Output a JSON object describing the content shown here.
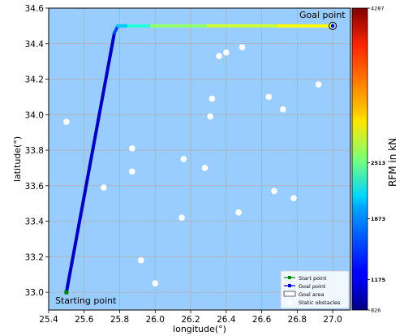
{
  "chart_data": {
    "type": "line",
    "title": "",
    "xlabel": "longitude(°)",
    "ylabel": "latitude(°)",
    "xlim": [
      25.4,
      27.1
    ],
    "ylim": [
      32.9,
      34.6
    ],
    "xticks": [
      25.4,
      25.6,
      25.8,
      26.0,
      26.2,
      26.4,
      26.6,
      26.8,
      27.0
    ],
    "yticks": [
      33.0,
      33.2,
      33.4,
      33.6,
      33.8,
      34.0,
      34.2,
      34.4,
      34.6
    ],
    "xtick_labels": [
      "25.4",
      "25.6",
      "25.8",
      "26.0",
      "26.2",
      "26.4",
      "26.6",
      "26.8",
      "27.0"
    ],
    "ytick_labels": [
      "33.0",
      "33.2",
      "33.4",
      "33.6",
      "33.8",
      "34.0",
      "34.2",
      "34.4",
      "34.6"
    ],
    "grid": true,
    "background_color": "#99ccff",
    "annotations": [
      {
        "text": "Goal point",
        "x": 27.0,
        "y": 34.5,
        "position": "above-left"
      },
      {
        "text": "Starting point",
        "x": 25.5,
        "y": 33.0,
        "position": "below-right"
      }
    ],
    "start_point": {
      "x": 25.5,
      "y": 33.0,
      "color": "#008000"
    },
    "goal_point": {
      "x": 27.0,
      "y": 34.5
    },
    "path": {
      "colorbar_range": [
        826,
        4287
      ],
      "segments": [
        {
          "x": [
            25.5,
            25.77
          ],
          "y": [
            33.0,
            34.46
          ],
          "rfm": 1050
        },
        {
          "x": [
            25.77,
            25.79
          ],
          "y": [
            34.46,
            34.5
          ],
          "rfm": 1500
        },
        {
          "x": [
            25.79,
            25.85
          ],
          "y": [
            34.5,
            34.5
          ],
          "rfm": 1950
        },
        {
          "x": [
            25.85,
            25.98
          ],
          "y": [
            34.5,
            34.5
          ],
          "rfm": 2250
        },
        {
          "x": [
            25.98,
            26.3
          ],
          "y": [
            34.5,
            34.5
          ],
          "rfm": 2620
        },
        {
          "x": [
            26.3,
            26.7
          ],
          "y": [
            34.5,
            34.5
          ],
          "rfm": 2820
        },
        {
          "x": [
            26.7,
            27.0
          ],
          "y": [
            34.5,
            34.5
          ],
          "rfm": 2980
        }
      ]
    },
    "obstacles": [
      {
        "x": 25.5,
        "y": 33.96
      },
      {
        "x": 25.71,
        "y": 33.59
      },
      {
        "x": 25.87,
        "y": 33.81
      },
      {
        "x": 25.87,
        "y": 33.68
      },
      {
        "x": 25.92,
        "y": 33.18
      },
      {
        "x": 26.0,
        "y": 33.05
      },
      {
        "x": 26.15,
        "y": 33.42
      },
      {
        "x": 26.16,
        "y": 33.75
      },
      {
        "x": 26.28,
        "y": 33.7
      },
      {
        "x": 26.31,
        "y": 33.99
      },
      {
        "x": 26.32,
        "y": 34.09
      },
      {
        "x": 26.36,
        "y": 34.33
      },
      {
        "x": 26.4,
        "y": 34.35
      },
      {
        "x": 26.47,
        "y": 33.45
      },
      {
        "x": 26.49,
        "y": 34.38
      },
      {
        "x": 26.64,
        "y": 34.1
      },
      {
        "x": 26.67,
        "y": 33.57
      },
      {
        "x": 26.72,
        "y": 34.03
      },
      {
        "x": 26.78,
        "y": 33.53
      },
      {
        "x": 26.92,
        "y": 34.17
      }
    ],
    "legend": {
      "placement": "lower-right",
      "entries": [
        {
          "label": "Start point",
          "marker": "square",
          "color": "#008000"
        },
        {
          "label": "Goal point",
          "marker": "square",
          "color": "#0000cc"
        },
        {
          "label": "Goal area",
          "marker": "rect",
          "color": "#ffffff"
        },
        {
          "label": "Static obstacles",
          "marker": "circle",
          "color": "#ffffff"
        }
      ]
    },
    "colorbar": {
      "label": "RFM in kN",
      "min": 826,
      "max": 4287,
      "colormap": "jet",
      "ticks": [
        826,
        1175,
        1873,
        2513,
        4287
      ],
      "tick_labels": [
        "826",
        "1175",
        "1873",
        "2513",
        "4287"
      ]
    }
  }
}
